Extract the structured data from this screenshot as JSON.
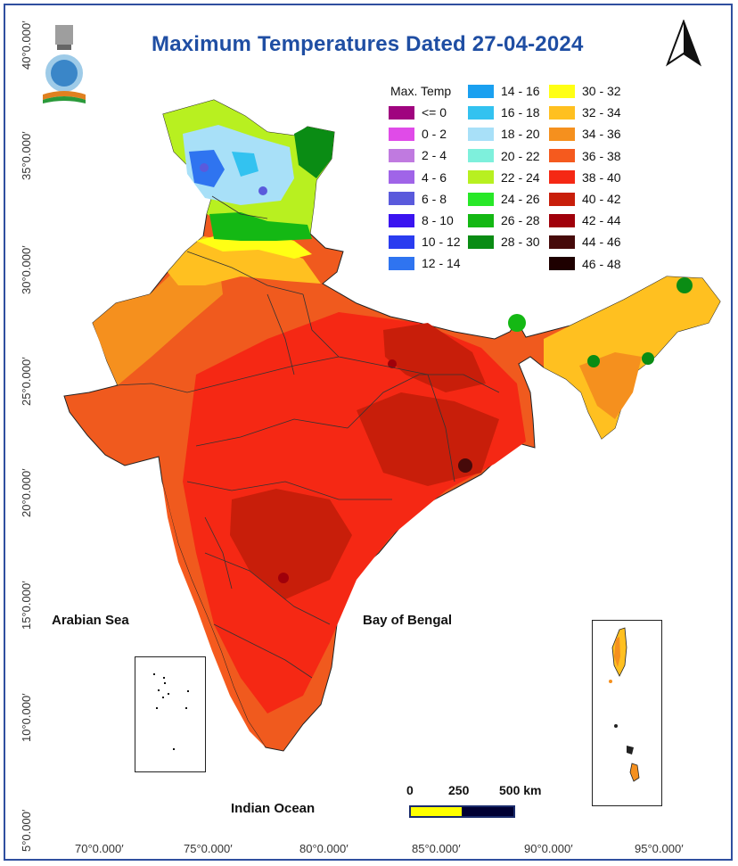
{
  "title": "Maximum Temperatures  Dated 27-04-2024",
  "latitude_labels": [
    "40°0.000′",
    "35°0.000′",
    "30°0.000′",
    "25°0.000′",
    "20°0.000′",
    "15°0.000′",
    "10°0.000′",
    "5°0.000′"
  ],
  "longitude_labels": [
    "70°0.000′",
    "75°0.000′",
    "80°0.000′",
    "85°0.000′",
    "90°0.000′",
    "95°0.000′"
  ],
  "legend": {
    "title": "Max. Temp",
    "items": [
      {
        "label": "<= 0",
        "color": "#a0047f"
      },
      {
        "label": "0 - 2",
        "color": "#e04be8"
      },
      {
        "label": "2 - 4",
        "color": "#c07ae0"
      },
      {
        "label": "4 - 6",
        "color": "#a064e8"
      },
      {
        "label": "6 - 8",
        "color": "#5a5adc"
      },
      {
        "label": "8 - 10",
        "color": "#3a14f0"
      },
      {
        "label": "10 - 12",
        "color": "#2a3cf0"
      },
      {
        "label": "12 - 14",
        "color": "#2f74f0"
      },
      {
        "label": "14 - 16",
        "color": "#1aa0f0"
      },
      {
        "label": "16 - 18",
        "color": "#33c2f0"
      },
      {
        "label": "18 - 20",
        "color": "#a8e0f8"
      },
      {
        "label": "20 - 22",
        "color": "#7ef0dc"
      },
      {
        "label": "22 - 24",
        "color": "#b8f020"
      },
      {
        "label": "24 - 26",
        "color": "#28e828"
      },
      {
        "label": "26 - 28",
        "color": "#14b814"
      },
      {
        "label": "28 - 30",
        "color": "#0a8c14"
      },
      {
        "label": "30 - 32",
        "color": "#ffff14"
      },
      {
        "label": "32 - 34",
        "color": "#ffc020"
      },
      {
        "label": "34 - 36",
        "color": "#f5901e"
      },
      {
        "label": "36 - 38",
        "color": "#f55a1e"
      },
      {
        "label": "38 - 40",
        "color": "#f52814"
      },
      {
        "label": "40 - 42",
        "color": "#c81e0a"
      },
      {
        "label": "42 - 44",
        "color": "#a0000a"
      },
      {
        "label": "44 - 46",
        "color": "#460a0a"
      },
      {
        "label": "46 - 48",
        "color": "#1e0000"
      }
    ]
  },
  "seas": {
    "arabian_sea": "Arabian Sea",
    "bay_of_bengal": "Bay of Bengal",
    "indian_ocean": "Indian Ocean"
  },
  "scalebar": {
    "label_0": "0",
    "label_250": "250",
    "label_500": "500 km",
    "color_1": "#ffff00",
    "color_2": "#000033"
  }
}
